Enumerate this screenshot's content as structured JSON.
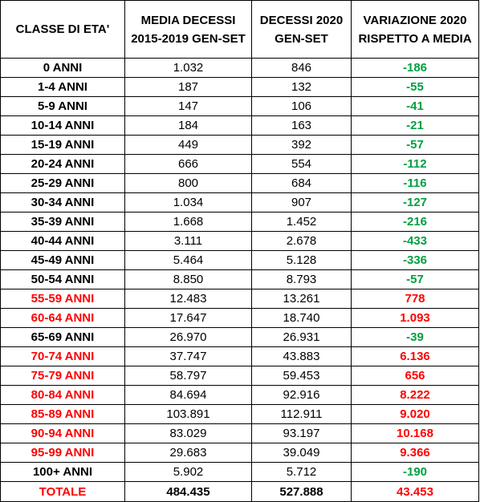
{
  "colors": {
    "negative": "#00a040",
    "positive": "#ff0000",
    "highlight_age": "#ff0000"
  },
  "header": {
    "col1": "CLASSE DI ETA'",
    "col2": "MEDIA DECESSI 2015-2019 GEN-SET",
    "col3": "DECESSI 2020 GEN-SET",
    "col4": "VARIAZIONE 2020 RISPETTO A MEDIA"
  },
  "rows": [
    {
      "age": "0 ANNI",
      "avg": "1.032",
      "d2020": "846",
      "var": "-186",
      "sign": "neg",
      "red": false
    },
    {
      "age": "1-4 ANNI",
      "avg": "187",
      "d2020": "132",
      "var": "-55",
      "sign": "neg",
      "red": false
    },
    {
      "age": "5-9 ANNI",
      "avg": "147",
      "d2020": "106",
      "var": "-41",
      "sign": "neg",
      "red": false
    },
    {
      "age": "10-14 ANNI",
      "avg": "184",
      "d2020": "163",
      "var": "-21",
      "sign": "neg",
      "red": false
    },
    {
      "age": "15-19 ANNI",
      "avg": "449",
      "d2020": "392",
      "var": "-57",
      "sign": "neg",
      "red": false
    },
    {
      "age": "20-24 ANNI",
      "avg": "666",
      "d2020": "554",
      "var": "-112",
      "sign": "neg",
      "red": false
    },
    {
      "age": "25-29 ANNI",
      "avg": "800",
      "d2020": "684",
      "var": "-116",
      "sign": "neg",
      "red": false
    },
    {
      "age": "30-34 ANNI",
      "avg": "1.034",
      "d2020": "907",
      "var": "-127",
      "sign": "neg",
      "red": false
    },
    {
      "age": "35-39 ANNI",
      "avg": "1.668",
      "d2020": "1.452",
      "var": "-216",
      "sign": "neg",
      "red": false
    },
    {
      "age": "40-44 ANNI",
      "avg": "3.111",
      "d2020": "2.678",
      "var": "-433",
      "sign": "neg",
      "red": false
    },
    {
      "age": "45-49 ANNI",
      "avg": "5.464",
      "d2020": "5.128",
      "var": "-336",
      "sign": "neg",
      "red": false
    },
    {
      "age": "50-54 ANNI",
      "avg": "8.850",
      "d2020": "8.793",
      "var": "-57",
      "sign": "neg",
      "red": false
    },
    {
      "age": "55-59 ANNI",
      "avg": "12.483",
      "d2020": "13.261",
      "var": "778",
      "sign": "pos",
      "red": true
    },
    {
      "age": "60-64 ANNI",
      "avg": "17.647",
      "d2020": "18.740",
      "var": "1.093",
      "sign": "pos",
      "red": true
    },
    {
      "age": "65-69 ANNI",
      "avg": "26.970",
      "d2020": "26.931",
      "var": "-39",
      "sign": "neg",
      "red": false
    },
    {
      "age": "70-74 ANNI",
      "avg": "37.747",
      "d2020": "43.883",
      "var": "6.136",
      "sign": "pos",
      "red": true
    },
    {
      "age": "75-79 ANNI",
      "avg": "58.797",
      "d2020": "59.453",
      "var": "656",
      "sign": "pos",
      "red": true
    },
    {
      "age": "80-84 ANNI",
      "avg": "84.694",
      "d2020": "92.916",
      "var": "8.222",
      "sign": "pos",
      "red": true
    },
    {
      "age": "85-89 ANNI",
      "avg": "103.891",
      "d2020": "112.911",
      "var": "9.020",
      "sign": "pos",
      "red": true
    },
    {
      "age": "90-94 ANNI",
      "avg": "83.029",
      "d2020": "93.197",
      "var": "10.168",
      "sign": "pos",
      "red": true
    },
    {
      "age": "95-99 ANNI",
      "avg": "29.683",
      "d2020": "39.049",
      "var": "9.366",
      "sign": "pos",
      "red": true
    },
    {
      "age": "100+ ANNI",
      "avg": "5.902",
      "d2020": "5.712",
      "var": "-190",
      "sign": "neg",
      "red": false
    }
  ],
  "total": {
    "age": "TOTALE",
    "avg": "484.435",
    "d2020": "527.888",
    "var": "43.453"
  }
}
